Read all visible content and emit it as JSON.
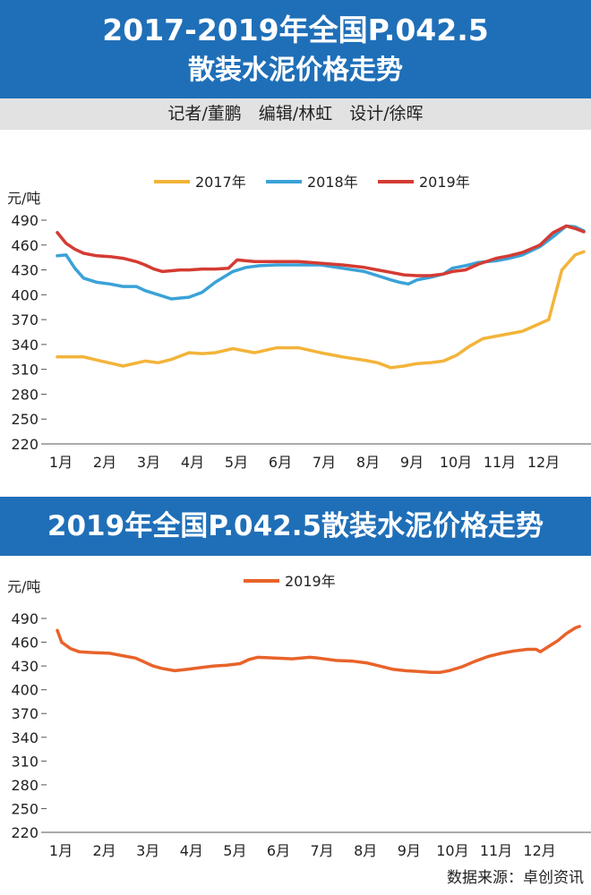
{
  "header": {
    "title_line1": "2017-2019年全国P.042.5",
    "title_line2": "散装水泥价格走势",
    "credits": "记者/董鹏　编辑/林虹　设计/徐晖"
  },
  "second_header": {
    "title": "2019年全国P.042.5散装水泥价格走势"
  },
  "footer": {
    "source": "数据来源：卓创资讯"
  },
  "colors": {
    "banner": "#1f6fb8",
    "s2017": "#f2b43a",
    "s2018": "#3aa2d8",
    "s2019": "#d43b33",
    "s2019_single": "#e8632a"
  },
  "chart_data": [
    {
      "type": "line",
      "unit": "元/吨",
      "categories": [
        "1月",
        "2月",
        "3月",
        "4月",
        "5月",
        "6月",
        "7月",
        "8月",
        "9月",
        "10月",
        "11月",
        "12月"
      ],
      "ylim": [
        220,
        490
      ],
      "yticks": [
        220,
        250,
        280,
        310,
        340,
        370,
        400,
        430,
        460,
        490
      ],
      "legend_position": "top",
      "series": [
        {
          "name": "2017年",
          "color": "#f2b43a",
          "x": [
            0,
            0.3,
            0.6,
            1.0,
            1.5,
            2.0,
            2.3,
            2.6,
            3.0,
            3.3,
            3.6,
            4.0,
            4.5,
            5.0,
            5.5,
            6.0,
            6.5,
            7.0,
            7.3,
            7.6,
            7.9,
            8.2,
            8.5,
            8.8,
            9.1,
            9.4,
            9.7,
            10.0,
            10.3,
            10.6,
            10.9,
            11.2,
            11.5,
            11.8,
            12.0
          ],
          "y": [
            325,
            325,
            325,
            320,
            314,
            320,
            318,
            322,
            330,
            329,
            330,
            335,
            330,
            336,
            336,
            330,
            325,
            321,
            318,
            312,
            314,
            317,
            318,
            320,
            327,
            338,
            347,
            350,
            353,
            356,
            363,
            370,
            430,
            448,
            452
          ]
        },
        {
          "name": "2018年",
          "color": "#3aa2d8",
          "x": [
            0,
            0.2,
            0.4,
            0.6,
            0.9,
            1.2,
            1.5,
            1.8,
            2.0,
            2.3,
            2.6,
            2.8,
            3.0,
            3.3,
            3.6,
            4.0,
            4.3,
            4.6,
            5.0,
            5.5,
            6.0,
            6.5,
            7.0,
            7.3,
            7.6,
            7.8,
            8.0,
            8.2,
            8.5,
            8.8,
            9.0,
            9.3,
            9.6,
            10.0,
            10.3,
            10.6,
            11.0,
            11.3,
            11.6,
            11.8,
            12.0
          ],
          "y": [
            447,
            448,
            432,
            420,
            415,
            413,
            410,
            410,
            405,
            400,
            395,
            396,
            397,
            403,
            415,
            428,
            433,
            435,
            436,
            436,
            436,
            432,
            428,
            423,
            418,
            415,
            413,
            418,
            421,
            425,
            432,
            435,
            439,
            441,
            444,
            448,
            458,
            470,
            483,
            482,
            477
          ]
        },
        {
          "name": "2019年",
          "color": "#d43b33",
          "x": [
            0,
            0.2,
            0.4,
            0.6,
            0.9,
            1.2,
            1.5,
            1.8,
            2.0,
            2.2,
            2.4,
            2.6,
            2.8,
            3.0,
            3.3,
            3.6,
            3.9,
            4.1,
            4.3,
            4.5,
            5.0,
            5.5,
            6.0,
            6.5,
            7.0,
            7.3,
            7.6,
            7.9,
            8.2,
            8.5,
            8.8,
            9.0,
            9.3,
            9.6,
            10.0,
            10.3,
            10.6,
            11.0,
            11.3,
            11.6,
            11.8,
            12.0
          ],
          "y": [
            475,
            462,
            455,
            450,
            447,
            446,
            444,
            440,
            436,
            431,
            428,
            429,
            430,
            430,
            431,
            431,
            432,
            442,
            441,
            440,
            440,
            440,
            438,
            436,
            433,
            430,
            427,
            424,
            423,
            423,
            425,
            428,
            430,
            437,
            444,
            447,
            451,
            460,
            475,
            483,
            480,
            476
          ]
        }
      ]
    },
    {
      "type": "line",
      "unit": "元/吨",
      "categories": [
        "1月",
        "2月",
        "3月",
        "4月",
        "5月",
        "6月",
        "7月",
        "8月",
        "9月",
        "10月",
        "11月",
        "12月"
      ],
      "ylim": [
        220,
        490
      ],
      "yticks": [
        220,
        250,
        280,
        310,
        340,
        370,
        400,
        430,
        460,
        490
      ],
      "legend_position": "top",
      "series": [
        {
          "name": "2019年",
          "color": "#e8632a",
          "x": [
            0,
            0.1,
            0.3,
            0.5,
            0.8,
            1.2,
            1.5,
            1.8,
            2.0,
            2.2,
            2.4,
            2.7,
            3.0,
            3.3,
            3.6,
            3.9,
            4.2,
            4.4,
            4.6,
            5.0,
            5.4,
            5.8,
            6.0,
            6.4,
            6.8,
            7.1,
            7.4,
            7.7,
            8.0,
            8.3,
            8.6,
            8.8,
            9.0,
            9.3,
            9.6,
            9.9,
            10.2,
            10.5,
            10.8,
            11.0,
            11.1,
            11.3,
            11.5,
            11.7,
            11.9,
            12.0
          ],
          "y": [
            475,
            460,
            452,
            448,
            447,
            446,
            443,
            440,
            435,
            430,
            427,
            424,
            426,
            428,
            430,
            431,
            433,
            438,
            441,
            440,
            439,
            441,
            440,
            437,
            436,
            434,
            430,
            426,
            424,
            423,
            422,
            422,
            424,
            429,
            436,
            442,
            446,
            449,
            451,
            451,
            448,
            455,
            462,
            471,
            478,
            480
          ]
        }
      ]
    }
  ]
}
